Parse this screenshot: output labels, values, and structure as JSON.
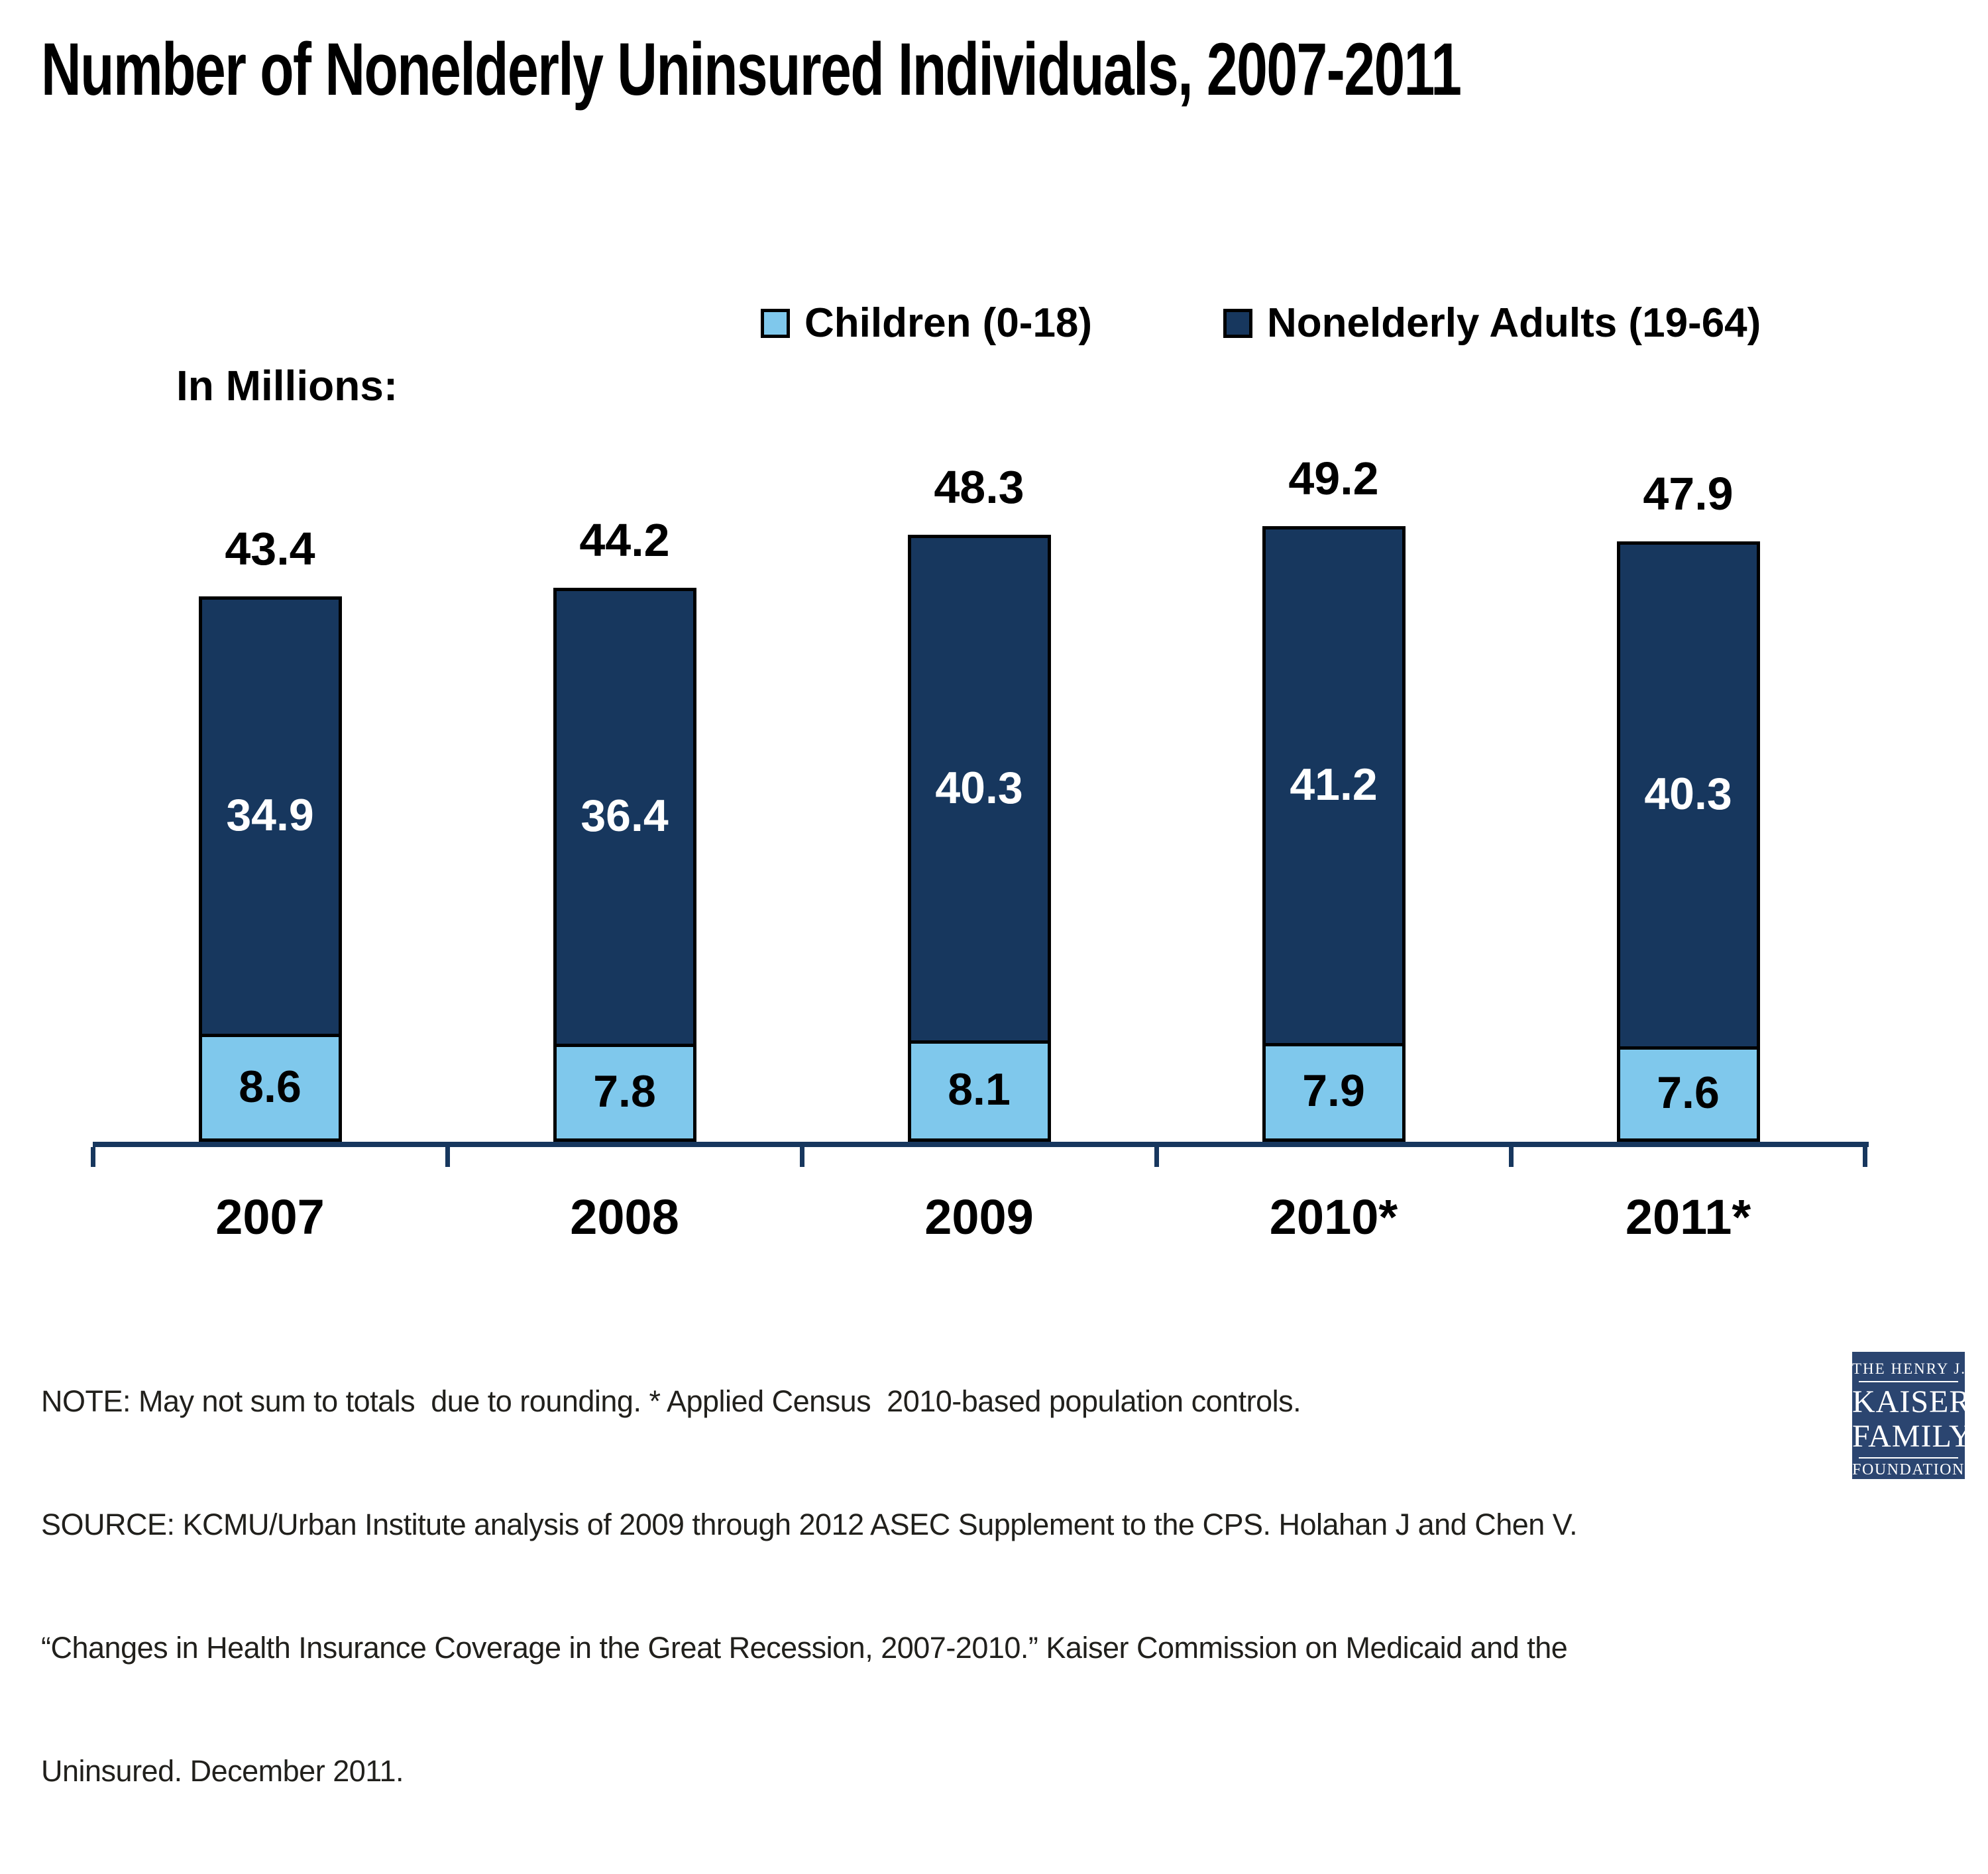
{
  "title": "Number of Nonelderly Uninsured Individuals, 2007-2011",
  "axis_caption": "In Millions:",
  "legend": [
    {
      "label": "Children (0-18)",
      "color": "#7FC8EC"
    },
    {
      "label": "Nonelderly Adults (19-64)",
      "color": "#17375E"
    }
  ],
  "chart_data": {
    "type": "bar",
    "stacked": true,
    "unit": "millions",
    "title": "Number of Nonelderly Uninsured Individuals, 2007-2011",
    "ylabel": "In Millions:",
    "categories": [
      "2007",
      "2008",
      "2009",
      "2010*",
      "2011*"
    ],
    "series": [
      {
        "name": "Children (0-18)",
        "color": "#7FC8EC",
        "values": [
          8.6,
          7.8,
          8.1,
          7.9,
          7.6
        ]
      },
      {
        "name": "Nonelderly Adults (19-64)",
        "color": "#17375E",
        "values": [
          34.9,
          36.4,
          40.3,
          41.2,
          40.3
        ]
      }
    ],
    "totals": [
      43.4,
      44.2,
      48.3,
      49.2,
      47.9
    ],
    "ylim": [
      0,
      52
    ],
    "grid": false,
    "legend_position": "top",
    "axis_color": "#17375E",
    "bar_border_color": "#000000"
  },
  "notes": [
    "NOTE: May not sum to totals  due to rounding. * Applied Census  2010-based population controls.",
    "SOURCE: KCMU/Urban Institute analysis of 2009 through 2012 ASEC Supplement to the CPS. Holahan J and Chen V.",
    "“Changes in Health Insurance Coverage in the Great Recession, 2007-2010.” Kaiser Commission on Medicaid and the",
    "Uninsured. December 2011."
  ],
  "logo": {
    "line1": "THE HENRY J.",
    "line2": "KAISER",
    "line3": "FAMILY",
    "line4": "FOUNDATION",
    "bg_color": "#2B4570"
  }
}
